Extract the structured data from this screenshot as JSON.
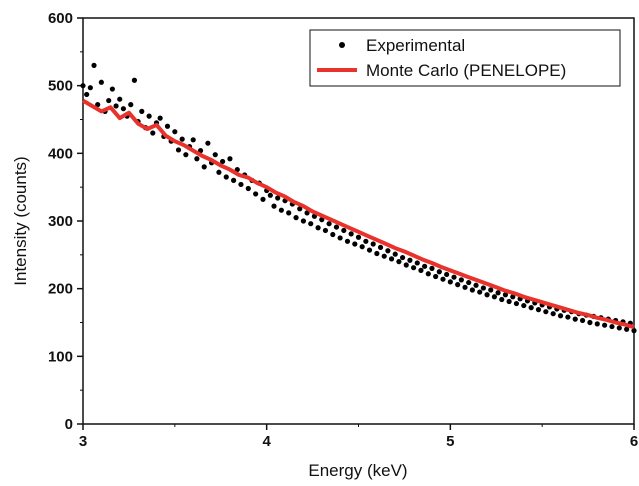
{
  "chart_data": {
    "type": "scatter",
    "xlabel": "Energy (keV)",
    "ylabel": "Intensity (counts)",
    "xlim": [
      3,
      6
    ],
    "ylim": [
      0,
      600
    ],
    "xticks": [
      3,
      4,
      5,
      6
    ],
    "yticks": [
      0,
      100,
      200,
      300,
      400,
      500,
      600
    ],
    "legend": "top-right",
    "grid": false,
    "series": [
      {
        "name": "Experimental",
        "kind": "scatter",
        "color": "#000000",
        "x": [
          3.0,
          3.02,
          3.04,
          3.06,
          3.08,
          3.1,
          3.12,
          3.14,
          3.16,
          3.18,
          3.2,
          3.22,
          3.24,
          3.26,
          3.28,
          3.3,
          3.32,
          3.34,
          3.36,
          3.38,
          3.4,
          3.42,
          3.44,
          3.46,
          3.48,
          3.5,
          3.52,
          3.54,
          3.56,
          3.58,
          3.6,
          3.62,
          3.64,
          3.66,
          3.68,
          3.7,
          3.72,
          3.74,
          3.76,
          3.78,
          3.8,
          3.82,
          3.84,
          3.86,
          3.88,
          3.9,
          3.92,
          3.94,
          3.96,
          3.98,
          4.0,
          4.02,
          4.04,
          4.06,
          4.08,
          4.1,
          4.12,
          4.14,
          4.16,
          4.18,
          4.2,
          4.22,
          4.24,
          4.26,
          4.28,
          4.3,
          4.32,
          4.34,
          4.36,
          4.38,
          4.4,
          4.42,
          4.44,
          4.46,
          4.48,
          4.5,
          4.52,
          4.54,
          4.56,
          4.58,
          4.6,
          4.62,
          4.64,
          4.66,
          4.68,
          4.7,
          4.72,
          4.74,
          4.76,
          4.78,
          4.8,
          4.82,
          4.84,
          4.86,
          4.88,
          4.9,
          4.92,
          4.94,
          4.96,
          4.98,
          5.0,
          5.02,
          5.04,
          5.06,
          5.08,
          5.1,
          5.12,
          5.14,
          5.16,
          5.18,
          5.2,
          5.22,
          5.24,
          5.26,
          5.28,
          5.3,
          5.32,
          5.34,
          5.36,
          5.38,
          5.4,
          5.42,
          5.44,
          5.46,
          5.48,
          5.5,
          5.52,
          5.54,
          5.56,
          5.58,
          5.6,
          5.62,
          5.64,
          5.66,
          5.68,
          5.7,
          5.72,
          5.74,
          5.76,
          5.78,
          5.8,
          5.82,
          5.84,
          5.86,
          5.88,
          5.9,
          5.92,
          5.94,
          5.96,
          5.98,
          6.0
        ],
        "y": [
          500,
          487,
          497,
          530,
          472,
          505,
          462,
          478,
          495,
          470,
          480,
          466,
          455,
          472,
          508,
          447,
          462,
          438,
          455,
          430,
          445,
          452,
          425,
          440,
          418,
          432,
          405,
          421,
          398,
          410,
          420,
          392,
          404,
          380,
          415,
          386,
          398,
          372,
          388,
          365,
          392,
          360,
          376,
          354,
          368,
          348,
          360,
          340,
          356,
          332,
          345,
          338,
          322,
          334,
          316,
          330,
          312,
          325,
          305,
          318,
          300,
          312,
          296,
          307,
          290,
          302,
          286,
          296,
          280,
          291,
          275,
          286,
          270,
          281,
          266,
          276,
          262,
          270,
          257,
          266,
          252,
          261,
          248,
          256,
          244,
          251,
          240,
          246,
          235,
          242,
          231,
          238,
          227,
          233,
          222,
          230,
          218,
          225,
          214,
          221,
          210,
          217,
          206,
          213,
          202,
          209,
          198,
          205,
          195,
          201,
          191,
          198,
          188,
          194,
          184,
          191,
          181,
          188,
          178,
          185,
          175,
          182,
          172,
          179,
          169,
          176,
          166,
          173,
          163,
          170,
          160,
          168,
          158,
          166,
          155,
          163,
          153,
          161,
          150,
          159,
          148,
          157,
          146,
          155,
          144,
          153,
          142,
          151,
          140,
          149,
          138
        ]
      },
      {
        "name": "Monte Carlo (PENELOPE)",
        "kind": "line",
        "color": "#e8322b",
        "x": [
          3.0,
          3.05,
          3.1,
          3.15,
          3.2,
          3.25,
          3.3,
          3.35,
          3.4,
          3.45,
          3.5,
          3.55,
          3.6,
          3.65,
          3.7,
          3.75,
          3.8,
          3.85,
          3.9,
          3.95,
          4.0,
          4.05,
          4.1,
          4.15,
          4.2,
          4.25,
          4.3,
          4.35,
          4.4,
          4.45,
          4.5,
          4.55,
          4.6,
          4.65,
          4.7,
          4.75,
          4.8,
          4.85,
          4.9,
          4.95,
          5.0,
          5.05,
          5.1,
          5.15,
          5.2,
          5.25,
          5.3,
          5.35,
          5.4,
          5.45,
          5.5,
          5.55,
          5.6,
          5.65,
          5.7,
          5.75,
          5.8,
          5.85,
          5.9,
          5.95,
          6.0
        ],
        "y": [
          478,
          470,
          462,
          468,
          452,
          460,
          444,
          436,
          442,
          426,
          418,
          412,
          404,
          396,
          390,
          382,
          376,
          368,
          364,
          356,
          350,
          342,
          336,
          328,
          322,
          314,
          308,
          302,
          296,
          290,
          284,
          278,
          272,
          266,
          260,
          255,
          249,
          243,
          238,
          232,
          227,
          222,
          217,
          212,
          207,
          202,
          197,
          193,
          188,
          184,
          180,
          176,
          172,
          168,
          164,
          161,
          157,
          154,
          150,
          147,
          143
        ]
      }
    ]
  }
}
